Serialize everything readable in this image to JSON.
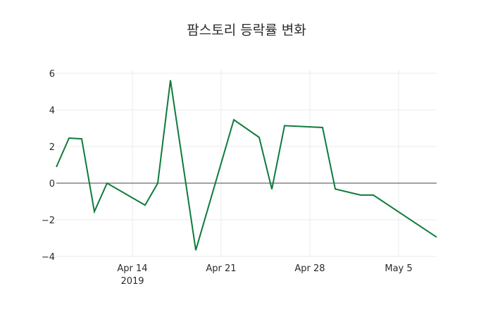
{
  "chart_data": {
    "type": "line",
    "title": "팜스토리 등락률 변화",
    "xlabel": "",
    "ylabel": "",
    "x": [
      "2019-04-08",
      "2019-04-09",
      "2019-04-10",
      "2019-04-11",
      "2019-04-12",
      "2019-04-15",
      "2019-04-16",
      "2019-04-17",
      "2019-04-19",
      "2019-04-22",
      "2019-04-24",
      "2019-04-25",
      "2019-04-26",
      "2019-04-29",
      "2019-04-30",
      "2019-05-02",
      "2019-05-03",
      "2019-05-08"
    ],
    "series": [
      {
        "name": "등락률",
        "color": "#0f7b3c",
        "values": [
          0.88,
          2.46,
          2.42,
          -1.55,
          0.0,
          -1.2,
          0.0,
          5.62,
          -3.66,
          3.46,
          2.5,
          -0.33,
          3.14,
          3.04,
          -0.32,
          -0.65,
          -0.65,
          -2.95
        ]
      }
    ],
    "ylim": [
      -4.2,
      6.2
    ],
    "xlim": [
      "2019-04-08",
      "2019-05-08"
    ],
    "yticks": [
      -4,
      -2,
      0,
      2,
      4,
      6
    ],
    "ytick_labels": [
      "−4",
      "−2",
      "0",
      "2",
      "4",
      "6"
    ],
    "xticks": [
      "2019-04-14",
      "2019-04-21",
      "2019-04-28",
      "2019-05-05"
    ],
    "xtick_labels": [
      "Apr 14",
      "Apr 21",
      "Apr 28",
      "May 5"
    ],
    "xtick_sublabel": "2019",
    "grid": true,
    "legend": null
  }
}
